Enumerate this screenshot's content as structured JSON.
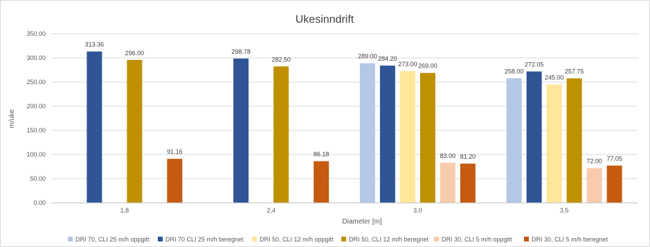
{
  "chart_data": {
    "type": "bar",
    "title": "Ukesinndrift",
    "xlabel": "Diameter [m]",
    "ylabel": "m/uke",
    "categories": [
      "1,8",
      "2,4",
      "3,0",
      "3,5"
    ],
    "ylim": [
      0,
      350
    ],
    "yticks": [
      "0.00",
      "50.00",
      "100.00",
      "150.00",
      "200.00",
      "250.00",
      "300.00",
      "350.00"
    ],
    "grid": true,
    "legend_position": "bottom",
    "series": [
      {
        "name": "DRI 70, CLI 25 m/h oppgitt",
        "color": "#b4c7e7",
        "values": [
          null,
          null,
          289.0,
          258.0
        ],
        "labels": [
          "",
          "",
          "289.00",
          "258.00"
        ]
      },
      {
        "name": "DRI 70 CLI 25 m/h beregnet",
        "color": "#2f5597",
        "values": [
          313.36,
          298.78,
          284.2,
          272.05
        ],
        "labels": [
          "313.36",
          "298.78",
          "284.20",
          "272.05"
        ]
      },
      {
        "name": "DRI 50, CLI 12 m/h oppgitt",
        "color": "#ffe699",
        "values": [
          null,
          null,
          273.0,
          245.0
        ],
        "labels": [
          "",
          "",
          "273.00",
          "245.00"
        ]
      },
      {
        "name": "DRI 50, CLI 12 m/h beregnet",
        "color": "#bf9000",
        "values": [
          296.0,
          282.5,
          269.0,
          257.75
        ],
        "labels": [
          "296.00",
          "282.50",
          "269.00",
          "257.75"
        ]
      },
      {
        "name": "DRI 30, CLI 5 m/h oppgitt",
        "color": "#f8cbad",
        "values": [
          null,
          null,
          83.0,
          72.0
        ],
        "labels": [
          "",
          "",
          "83.00",
          "72.00"
        ]
      },
      {
        "name": "DRI 30, CLI 5 m/h beregnet",
        "color": "#c55a11",
        "values": [
          91.16,
          86.18,
          81.2,
          77.05
        ],
        "labels": [
          "91.16",
          "86.18",
          "81.20",
          "77.05"
        ]
      }
    ]
  }
}
